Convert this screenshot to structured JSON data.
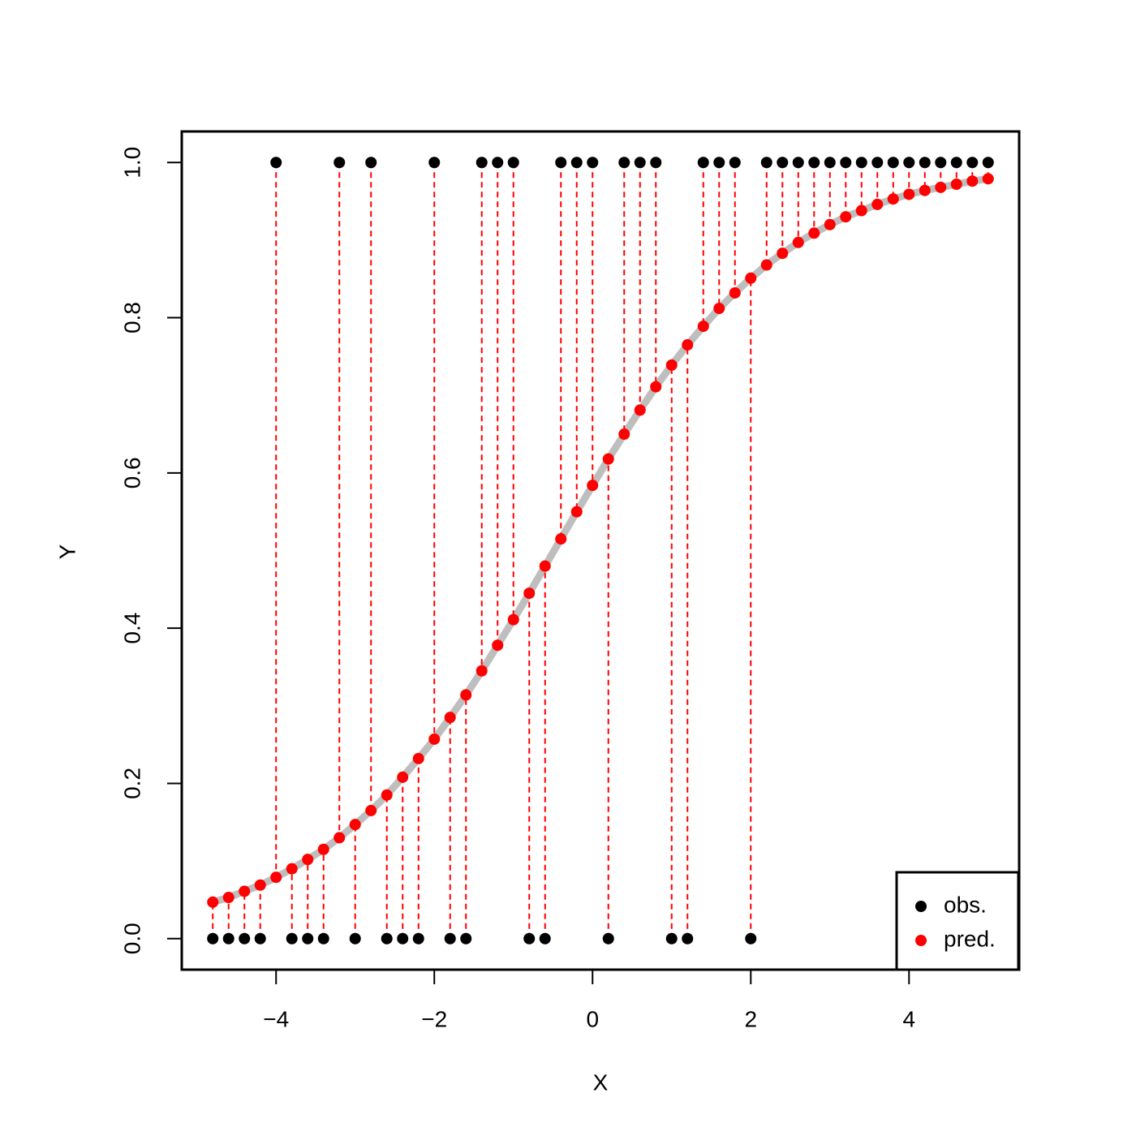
{
  "chart_data": {
    "type": "scatter",
    "x_label": "X",
    "y_label": "Y",
    "x": [
      -4.8,
      -4.6,
      -4.4,
      -4.2,
      -4.0,
      -3.8,
      -3.6,
      -3.4,
      -3.2,
      -3.0,
      -2.8,
      -2.6,
      -2.4,
      -2.2,
      -2.0,
      -1.8,
      -1.6,
      -1.4,
      -1.2,
      -1.0,
      -0.8,
      -0.6,
      -0.4,
      -0.2,
      0.0,
      0.2,
      0.4,
      0.6,
      0.8,
      1.0,
      1.2,
      1.4,
      1.6,
      1.8,
      2.0,
      2.2,
      2.4,
      2.6,
      2.8,
      3.0,
      3.2,
      3.4,
      3.6,
      3.8,
      4.0,
      4.2,
      4.4,
      4.6,
      4.8,
      5.0
    ],
    "series": [
      {
        "name": "obs.",
        "color": "#000000",
        "values": [
          0,
          0,
          0,
          0,
          1,
          0,
          0,
          0,
          1,
          0,
          1,
          0,
          0,
          0,
          1,
          0,
          0,
          1,
          1,
          1,
          0,
          0,
          1,
          1,
          1,
          0,
          1,
          1,
          1,
          0,
          0,
          1,
          1,
          1,
          0,
          1,
          1,
          1,
          1,
          1,
          1,
          1,
          1,
          1,
          1,
          1,
          1,
          1,
          1,
          1
        ]
      },
      {
        "name": "pred.",
        "color": "#ff0000",
        "values": [
          0.047,
          0.053,
          0.061,
          0.069,
          0.079,
          0.09,
          0.102,
          0.115,
          0.13,
          0.147,
          0.165,
          0.185,
          0.208,
          0.232,
          0.257,
          0.285,
          0.314,
          0.345,
          0.378,
          0.411,
          0.445,
          0.48,
          0.515,
          0.55,
          0.584,
          0.618,
          0.65,
          0.681,
          0.711,
          0.739,
          0.765,
          0.789,
          0.812,
          0.832,
          0.851,
          0.868,
          0.883,
          0.897,
          0.909,
          0.92,
          0.93,
          0.938,
          0.946,
          0.953,
          0.959,
          0.964,
          0.968,
          0.972,
          0.976,
          0.979
        ]
      }
    ],
    "fit_color": "#bebebe",
    "xlim": [
      -5.192,
      5.392
    ],
    "ylim": [
      -0.04,
      1.04
    ],
    "xticks": [
      {
        "value": -4,
        "label": "−4"
      },
      {
        "value": -2,
        "label": "−2"
      },
      0,
      2,
      4
    ],
    "yticks": [
      {
        "value": 0,
        "label": "0.0"
      },
      0.2,
      0.4,
      0.6,
      0.8,
      {
        "value": 1,
        "label": "1.0"
      }
    ],
    "legend": "bottom right"
  }
}
